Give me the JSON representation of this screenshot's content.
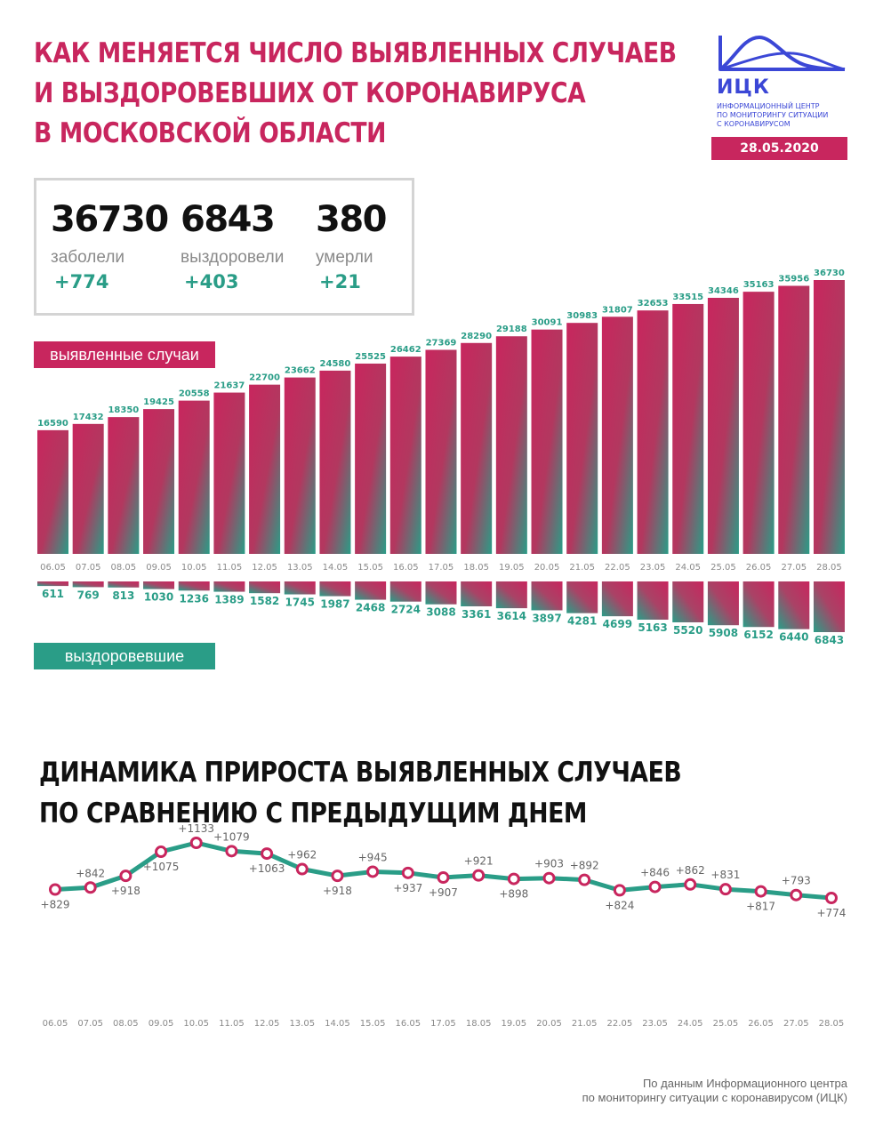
{
  "header": {
    "title_lines": [
      "КАК МЕНЯЕТСЯ ЧИСЛО ВЫЯВЛЕННЫХ СЛУЧАЕВ",
      "И ВЫЗДОРОВЕВШИХ ОТ КОРОНАВИРУСА",
      "В МОСКОВСКОЙ ОБЛАСТИ"
    ],
    "logo_abbr": "ИЦК",
    "logo_text_lines": [
      "ИНФОРМАЦИОННЫЙ ЦЕНТР",
      "ПО МОНИТОРИНГУ СИТУАЦИИ",
      "С КОРОНАВИРУСОМ"
    ],
    "date": "28.05.2020"
  },
  "stats": [
    {
      "value": "36730",
      "label": "заболели",
      "delta": "+774"
    },
    {
      "value": "6843",
      "label": "выздоровели",
      "delta": "+403"
    },
    {
      "value": "380",
      "label": "умерли",
      "delta": "+21"
    }
  ],
  "legend": {
    "cases": "выявленные случаи",
    "recovered": "выздоровевшие"
  },
  "second_title_lines": [
    "ДИНАМИКА ПРИРОСТА ВЫЯВЛЕННЫХ СЛУЧАЕВ",
    "ПО СРАВНЕНИЮ С ПРЕДЫДУЩИМ ДНЕМ"
  ],
  "footer_lines": [
    "По данным Информационного центра",
    "по мониторингу ситуации с коронавирусом (ИЦК)"
  ],
  "colors": {
    "accent": "#c8265e",
    "teal": "#2a9d87",
    "brand_blue": "#3b47d6"
  },
  "chart_data": [
    {
      "type": "bar",
      "categories": [
        "06.05",
        "07.05",
        "08.05",
        "09.05",
        "10.05",
        "11.05",
        "12.05",
        "13.05",
        "14.05",
        "15.05",
        "16.05",
        "17.05",
        "18.05",
        "19.05",
        "20.05",
        "21.05",
        "22.05",
        "23.05",
        "24.05",
        "25.05",
        "26.05",
        "27.05",
        "28.05"
      ],
      "series": [
        {
          "name": "выявленные случаи",
          "values": [
            16590,
            17432,
            18350,
            19425,
            20558,
            21637,
            22700,
            23662,
            24580,
            25525,
            26462,
            27369,
            28290,
            29188,
            30091,
            30983,
            31807,
            32653,
            33515,
            34346,
            35163,
            35956,
            36730
          ]
        },
        {
          "name": "выздоровевшие",
          "values": [
            611,
            769,
            813,
            1030,
            1236,
            1389,
            1582,
            1745,
            1987,
            2468,
            2724,
            3088,
            3361,
            3614,
            3897,
            4281,
            4699,
            5163,
            5520,
            5908,
            6152,
            6440,
            6843
          ]
        }
      ]
    },
    {
      "type": "line",
      "categories": [
        "06.05",
        "07.05",
        "08.05",
        "09.05",
        "10.05",
        "11.05",
        "12.05",
        "13.05",
        "14.05",
        "15.05",
        "16.05",
        "17.05",
        "18.05",
        "19.05",
        "20.05",
        "21.05",
        "22.05",
        "23.05",
        "24.05",
        "25.05",
        "26.05",
        "27.05",
        "28.05"
      ],
      "values": [
        829,
        842,
        918,
        1075,
        1133,
        1079,
        1063,
        962,
        918,
        945,
        937,
        907,
        921,
        898,
        903,
        892,
        824,
        846,
        862,
        831,
        817,
        793,
        774
      ],
      "labels": [
        "+829",
        "+842",
        "+918",
        "+1075",
        "+1133",
        "+1079",
        "+1063",
        "+962",
        "+918",
        "+945",
        "+937",
        "+907",
        "+921",
        "+898",
        "+903",
        "+892",
        "+824",
        "+846",
        "+862",
        "+831",
        "+817",
        "+793",
        "+774"
      ]
    }
  ]
}
